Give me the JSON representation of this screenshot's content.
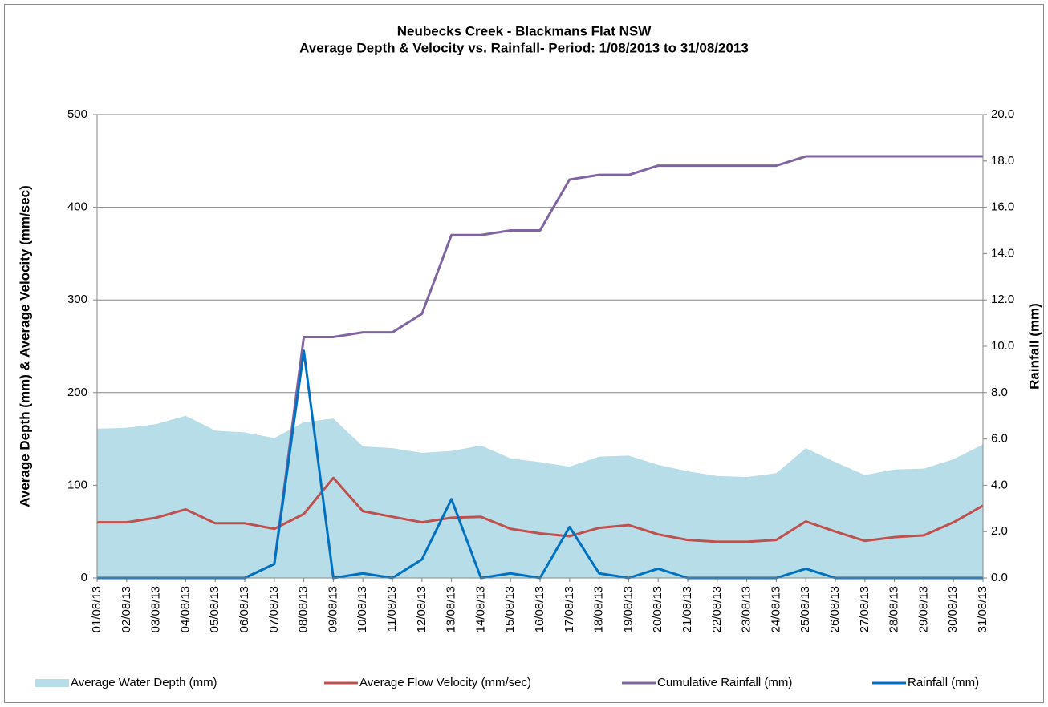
{
  "chart_data": {
    "type": "line",
    "title": "Neubecks Creek - Blackmans Flat NSW",
    "subtitle": "Average Depth & Velocity  vs. Rainfall- Period: 1/08/2013 to 31/08/2013",
    "y_label": "Average Depth (mm) & Average Velocity (mm/sec)",
    "y2_label": "Rainfall (mm)",
    "categories": [
      "01/08/13",
      "02/08/13",
      "03/08/13",
      "04/08/13",
      "05/08/13",
      "06/08/13",
      "07/08/13",
      "08/08/13",
      "09/08/13",
      "10/08/13",
      "11/08/13",
      "12/08/13",
      "13/08/13",
      "14/08/13",
      "15/08/13",
      "16/08/13",
      "17/08/13",
      "18/08/13",
      "19/08/13",
      "20/08/13",
      "21/08/13",
      "22/08/13",
      "23/08/13",
      "24/08/13",
      "25/08/13",
      "26/08/13",
      "27/08/13",
      "28/08/13",
      "29/08/13",
      "30/08/13",
      "31/08/13"
    ],
    "ylim": [
      0,
      500
    ],
    "yticks": [
      0,
      100,
      200,
      300,
      400,
      500
    ],
    "y2lim": [
      0,
      20
    ],
    "y2ticks": [
      {
        "value": 0,
        "label": "0.0"
      },
      {
        "value": 2,
        "label": "2.0"
      },
      {
        "value": 4,
        "label": "4.0"
      },
      {
        "value": 6,
        "label": "6.0"
      },
      {
        "value": 8,
        "label": "8.0"
      },
      {
        "value": 10,
        "label": "10.0"
      },
      {
        "value": 12,
        "label": "12.0"
      },
      {
        "value": 14,
        "label": "14.0"
      },
      {
        "value": 16,
        "label": "16.0"
      },
      {
        "value": 18,
        "label": "18.0"
      },
      {
        "value": 20,
        "label": "20.0"
      }
    ],
    "grid": true,
    "legend": "bottom",
    "series": [
      {
        "name": "Average Water Depth (mm)",
        "kind": "area",
        "color": "#b7dde8",
        "values": [
          161,
          162,
          166,
          175,
          159,
          157,
          151,
          168,
          172,
          142,
          140,
          135,
          137,
          143,
          129,
          125,
          120,
          131,
          132,
          122,
          115,
          110,
          109,
          113,
          140,
          125,
          111,
          117,
          118,
          128,
          144
        ]
      },
      {
        "name": "Average Flow Velocity (mm/sec)",
        "kind": "line",
        "color": "#c0504d",
        "values": [
          60,
          60,
          65,
          74,
          59,
          59,
          53,
          69,
          108,
          72,
          66,
          60,
          65,
          66,
          53,
          48,
          45,
          54,
          57,
          47,
          41,
          39,
          39,
          41,
          61,
          50,
          40,
          44,
          46,
          60,
          78
        ]
      },
      {
        "name": "Cumulative Rainfall (mm)",
        "kind": "line",
        "color": "#8064a2",
        "axis": "y2",
        "values": [
          0,
          0,
          0,
          0,
          0,
          0,
          0.6,
          10.4,
          10.4,
          10.6,
          10.6,
          11.4,
          14.8,
          14.8,
          15.0,
          15.0,
          17.2,
          17.4,
          17.4,
          17.8,
          17.8,
          17.8,
          17.8,
          17.8,
          18.2,
          18.2,
          18.2,
          18.2,
          18.2,
          18.2,
          18.2
        ]
      },
      {
        "name": "Rainfall (mm)",
        "kind": "line",
        "color": "#0070c0",
        "axis": "y2",
        "values": [
          0,
          0,
          0,
          0,
          0,
          0,
          0.6,
          9.8,
          0,
          0.2,
          0,
          0.8,
          3.4,
          0,
          0.2,
          0,
          2.2,
          0.2,
          0,
          0.4,
          0,
          0,
          0,
          0,
          0.4,
          0,
          0,
          0,
          0,
          0,
          0
        ]
      }
    ]
  }
}
